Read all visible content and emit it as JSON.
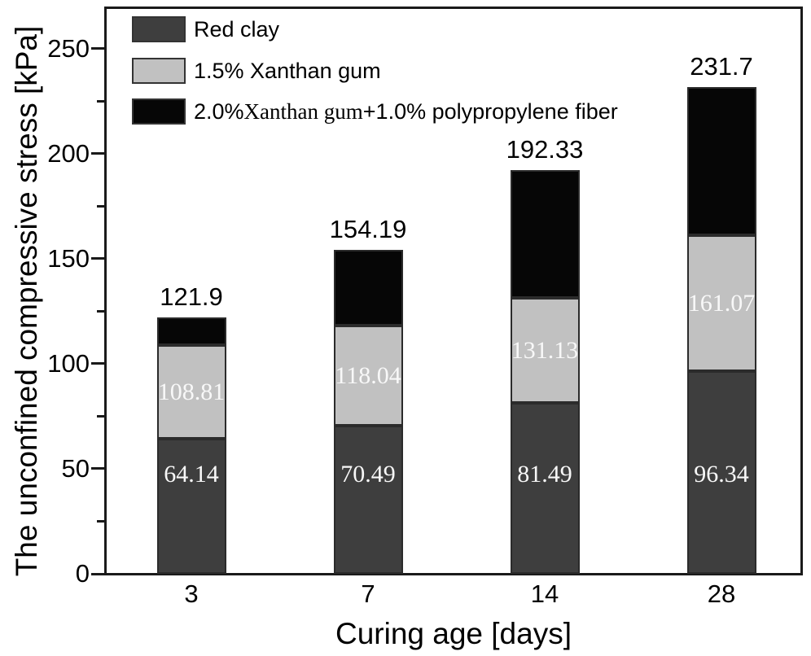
{
  "figure": {
    "y_axis_title": "The unconfined compressive stress [kPa]",
    "x_axis_title": "Curing age [days]"
  },
  "chart_data": {
    "type": "bar",
    "stacked": true,
    "title": "",
    "xlabel": "Curing age [days]",
    "ylabel": "The unconfined compressive stress [kPa]",
    "categories": [
      "3",
      "7",
      "14",
      "28"
    ],
    "ylim": [
      0,
      270
    ],
    "y_major_ticks": [
      "0",
      "50",
      "100",
      "150",
      "200",
      "250"
    ],
    "y_minor_ticks": [
      25,
      75,
      125,
      175,
      225
    ],
    "grid": false,
    "legend_position": "top-left-inside",
    "series": [
      {
        "name": "Red clay",
        "color": "#3e3e3e",
        "cumulative_tops": [
          64.14,
          70.49,
          81.49,
          96.34
        ],
        "segment_labels": [
          "64.14",
          "70.49",
          "81.49",
          "96.34"
        ],
        "label_color": "#f8f8f8"
      },
      {
        "name": "1.5% Xanthan gum",
        "color": "#c1c1c1",
        "cumulative_tops": [
          108.81,
          118.04,
          131.13,
          161.07
        ],
        "segment_labels": [
          "108.81",
          "118.04",
          "131.13",
          "161.07"
        ],
        "label_color": "#f8f8f8"
      },
      {
        "name": "2.0% Xanthan gum+1.0% polypropylene fiber",
        "color": "#060606",
        "cumulative_tops": [
          121.9,
          154.19,
          192.33,
          231.7
        ],
        "segment_labels": [
          null,
          null,
          null,
          null
        ]
      }
    ],
    "bar_totals": [
      "121.9",
      "154.19",
      "192.33",
      "231.7"
    ],
    "legend": {
      "items": [
        {
          "swatch_color": "#3e3e3e",
          "parts": [
            {
              "text": "Red clay",
              "serif": false
            }
          ]
        },
        {
          "swatch_color": "#c1c1c1",
          "parts": [
            {
              "text": "1.5% Xanthan gum",
              "serif": false
            }
          ]
        },
        {
          "swatch_color": "#060606",
          "parts": [
            {
              "text": "2.0% ",
              "serif": false
            },
            {
              "text": "Xanthan gum",
              "serif": true
            },
            {
              "text": "+1.0% polypropylene fiber",
              "serif": false
            }
          ]
        }
      ]
    }
  },
  "colors": {
    "background": "#ffffff",
    "axis": "#1a1a1a",
    "text": "#000000",
    "bar_border": "#2b2b2b"
  }
}
